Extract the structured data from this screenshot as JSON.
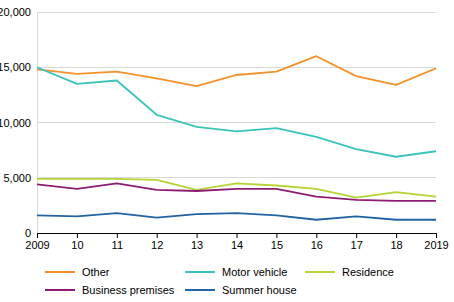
{
  "chart_data": {
    "type": "line",
    "x": [
      2009,
      2010,
      2011,
      2012,
      2013,
      2014,
      2015,
      2016,
      2017,
      2018,
      2019
    ],
    "xlim": [
      2009,
      2019
    ],
    "xticks": [
      2009,
      {
        "value": 2010,
        "label": "10"
      },
      {
        "value": 2011,
        "label": "11"
      },
      {
        "value": 2012,
        "label": "12"
      },
      {
        "value": 2013,
        "label": "13"
      },
      {
        "value": 2014,
        "label": "14"
      },
      {
        "value": 2015,
        "label": "15"
      },
      {
        "value": 2016,
        "label": "16"
      },
      {
        "value": 2017,
        "label": "17"
      },
      {
        "value": 2018,
        "label": "18"
      },
      2019
    ],
    "ylim": [
      0,
      20000
    ],
    "yticks": [
      0,
      {
        "value": 5000,
        "label": "5,000"
      },
      {
        "value": 10000,
        "label": "10,000"
      },
      {
        "value": 15000,
        "label": "15,000"
      },
      {
        "value": 20000,
        "label": "20,000"
      }
    ],
    "grid": true,
    "legend": "bottom",
    "series": [
      {
        "name": "Other",
        "color": "#f5912d",
        "values": [
          14800,
          14400,
          14600,
          14000,
          13300,
          14300,
          14600,
          16000,
          14200,
          13400,
          14900
        ]
      },
      {
        "name": "Motor vehicle",
        "color": "#3cc3bc",
        "values": [
          15000,
          13500,
          13800,
          10700,
          9600,
          9200,
          9500,
          8700,
          7600,
          6900,
          7400
        ]
      },
      {
        "name": "Residence",
        "color": "#b5d334",
        "values": [
          4900,
          4900,
          4900,
          4800,
          3900,
          4500,
          4300,
          4000,
          3200,
          3700,
          3300
        ]
      },
      {
        "name": "Business premises",
        "color": "#8c1d73",
        "values": [
          4400,
          4000,
          4500,
          3900,
          3800,
          4000,
          4000,
          3300,
          3000,
          2900,
          2900
        ]
      },
      {
        "name": "Summer house",
        "color": "#2263a2",
        "values": [
          1600,
          1500,
          1800,
          1400,
          1700,
          1800,
          1600,
          1200,
          1500,
          1200,
          1200
        ]
      }
    ]
  }
}
